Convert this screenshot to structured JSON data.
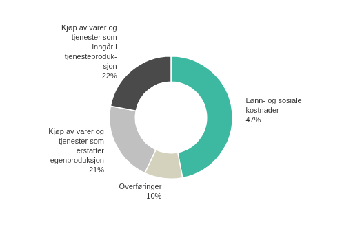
{
  "chart_data": {
    "type": "doughnut",
    "categories": [
      "Lønn- og sosiale\nkostnader",
      "Overføringer",
      "Kjøp av varer og\ntjenester som\nerstatter\negenproduksjon",
      "Kjøp av varer og\ntjenester som\ninngår i\ntjenesteproduk-\nsjon"
    ],
    "values": [
      47,
      10,
      21,
      22
    ],
    "value_labels": [
      "47%",
      "10%",
      "21%",
      "22%"
    ],
    "data_labels": true,
    "colors": [
      "#3cb9a0",
      "#d4d2bc",
      "#c0c0c0",
      "#4a4a4a"
    ]
  }
}
